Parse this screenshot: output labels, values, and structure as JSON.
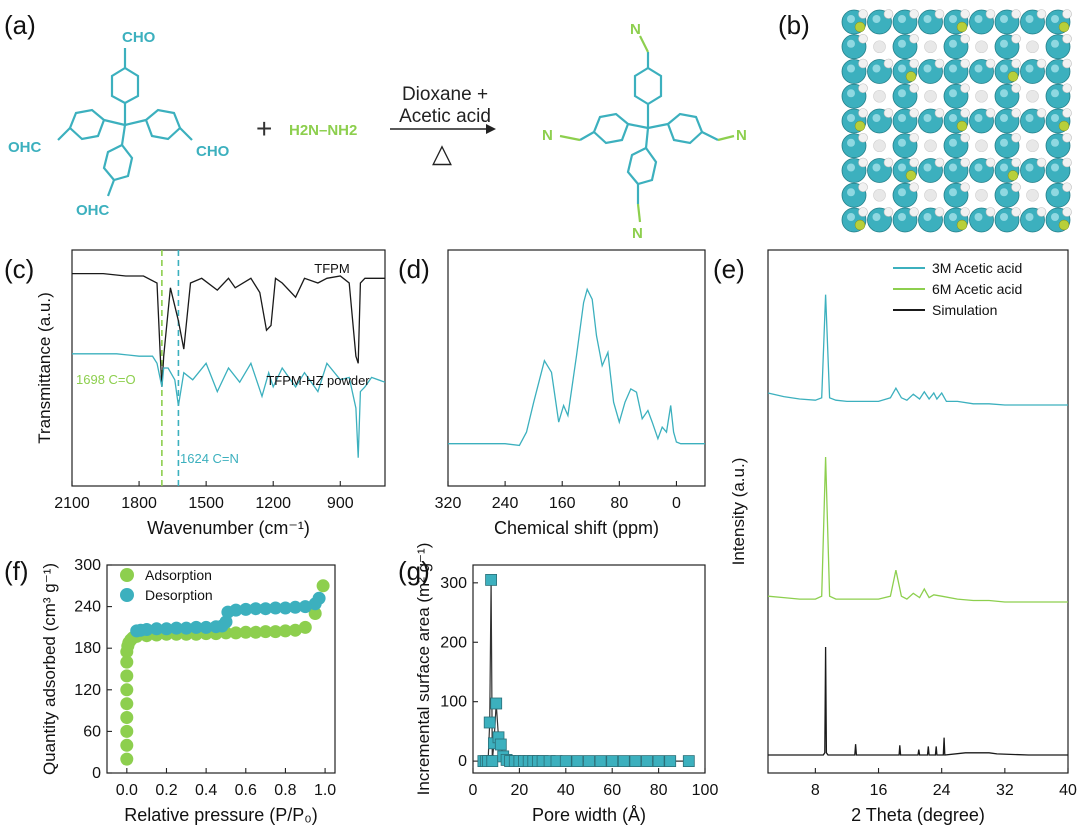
{
  "colors": {
    "teal": "#3cb0be",
    "green": "#8dcf4e",
    "black": "#1a1a1a",
    "axis": "#222222"
  },
  "panel_labels": [
    "(a)",
    "(b)",
    "(c)",
    "(d)",
    "(e)",
    "(f)",
    "(g)"
  ],
  "scheme": {
    "reactant_a_groups": [
      "CHO",
      "OHC",
      "CHO",
      "OHC"
    ],
    "plus": "+",
    "reactant_b": "H2N–NH2",
    "condition_line1": "Dioxane +",
    "condition_line2": "Acetic acid",
    "heat_symbol": "△",
    "product_groups": [
      "N",
      "N",
      "N",
      "N"
    ]
  },
  "chart_data": [
    {
      "panel": "(c)",
      "type": "line",
      "xlabel": "Wavenumber (cm⁻¹)",
      "ylabel": "Transmittance (a.u.)",
      "xlim": [
        2100,
        700
      ],
      "xticks": [
        2100,
        1800,
        1500,
        1200,
        900
      ],
      "series": [
        {
          "name": "TFPM",
          "color": "#1a1a1a",
          "x": [
            2100,
            1960,
            1860,
            1780,
            1720,
            1705,
            1698,
            1690,
            1660,
            1624,
            1600,
            1570,
            1520,
            1450,
            1400,
            1370,
            1300,
            1260,
            1230,
            1210,
            1190,
            1160,
            1100,
            1060,
            1000,
            960,
            900,
            860,
            830,
            820,
            810,
            790,
            760,
            700
          ],
          "y": [
            0.9,
            0.9,
            0.89,
            0.89,
            0.86,
            0.55,
            0.42,
            0.55,
            0.84,
            0.7,
            0.58,
            0.86,
            0.88,
            0.83,
            0.88,
            0.84,
            0.88,
            0.82,
            0.66,
            0.68,
            0.88,
            0.86,
            0.8,
            0.88,
            0.86,
            0.88,
            0.89,
            0.86,
            0.55,
            0.52,
            0.86,
            0.88,
            0.88,
            0.88
          ]
        },
        {
          "name": "TFPM-HZ powder",
          "color": "#3cb0be",
          "x": [
            2100,
            1900,
            1800,
            1740,
            1720,
            1698,
            1690,
            1670,
            1640,
            1624,
            1600,
            1560,
            1500,
            1450,
            1400,
            1350,
            1300,
            1250,
            1220,
            1200,
            1160,
            1100,
            1060,
            1000,
            960,
            900,
            860,
            830,
            820,
            810,
            790,
            760,
            700
          ],
          "y": [
            0.56,
            0.56,
            0.55,
            0.55,
            0.52,
            0.42,
            0.5,
            0.5,
            0.45,
            0.34,
            0.48,
            0.45,
            0.52,
            0.4,
            0.5,
            0.44,
            0.52,
            0.38,
            0.48,
            0.42,
            0.5,
            0.42,
            0.48,
            0.4,
            0.52,
            0.45,
            0.46,
            0.33,
            0.12,
            0.4,
            0.42,
            0.46,
            0.44
          ]
        }
      ],
      "labels": [
        "TFPM",
        "TFPM-HZ powder"
      ],
      "annotations": [
        {
          "text": "1698 C=O",
          "x": 1698,
          "color": "#8dcf4e"
        },
        {
          "text": "1624 C=N",
          "x": 1624,
          "color": "#3cb0be"
        }
      ]
    },
    {
      "panel": "(d)",
      "type": "line",
      "xlabel": "Chemical shift (ppm)",
      "xlim": [
        320,
        -40
      ],
      "xticks": [
        320,
        240,
        160,
        80,
        0
      ],
      "series": [
        {
          "name": "",
          "color": "#3cb0be",
          "x": [
            320,
            280,
            240,
            220,
            210,
            200,
            185,
            175,
            165,
            158,
            152,
            146,
            140,
            130,
            125,
            118,
            112,
            104,
            96,
            88,
            80,
            72,
            64,
            56,
            48,
            40,
            34,
            26,
            20,
            14,
            8,
            4,
            0,
            -6,
            -12,
            -20,
            -30,
            -40
          ],
          "y": [
            0.05,
            0.05,
            0.05,
            0.04,
            0.12,
            0.3,
            0.55,
            0.48,
            0.18,
            0.28,
            0.22,
            0.4,
            0.58,
            0.9,
            0.98,
            0.92,
            0.7,
            0.52,
            0.6,
            0.3,
            0.18,
            0.3,
            0.38,
            0.36,
            0.2,
            0.25,
            0.18,
            0.08,
            0.15,
            0.12,
            0.28,
            0.12,
            0.06,
            0.05,
            0.05,
            0.05,
            0.05,
            0.05
          ]
        }
      ]
    },
    {
      "panel": "(e)",
      "type": "line",
      "xlabel": "2 Theta (degree)",
      "ylabel": "Intensity (a.u.)",
      "xlim": [
        2,
        40
      ],
      "xticks": [
        8,
        16,
        24,
        32,
        40
      ],
      "legend": "top-right",
      "series": [
        {
          "name": "3M Acetic acid",
          "color": "#3cb0be",
          "x": [
            2,
            4,
            6,
            8,
            8.8,
            9.3,
            9.8,
            10.6,
            12,
            14,
            16,
            17.5,
            18.2,
            18.9,
            19.6,
            20.4,
            21.2,
            21.8,
            22.4,
            23,
            23.4,
            24,
            24.6,
            26,
            28,
            30,
            32,
            36,
            40
          ],
          "y": [
            0.1,
            0.07,
            0.05,
            0.04,
            0.06,
            0.92,
            0.06,
            0.04,
            0.03,
            0.03,
            0.03,
            0.06,
            0.14,
            0.06,
            0.04,
            0.09,
            0.05,
            0.11,
            0.05,
            0.1,
            0.05,
            0.1,
            0.03,
            0.03,
            0.01,
            0.01,
            0.0,
            0.0,
            0.0
          ]
        },
        {
          "name": "6M Acetic acid",
          "color": "#8dcf4e",
          "x": [
            2,
            4,
            6,
            8,
            8.8,
            9.3,
            9.8,
            10.6,
            12,
            14,
            16,
            17.5,
            18.2,
            18.9,
            19.6,
            20.4,
            21.2,
            21.8,
            22.4,
            23,
            24,
            26,
            28,
            30,
            32,
            36,
            40
          ],
          "y": [
            0.04,
            0.03,
            0.02,
            0.02,
            0.04,
            1.0,
            0.04,
            0.02,
            0.02,
            0.02,
            0.02,
            0.04,
            0.22,
            0.04,
            0.02,
            0.06,
            0.03,
            0.09,
            0.03,
            0.05,
            0.04,
            0.02,
            0.01,
            0.01,
            0.0,
            0.0,
            0.0
          ]
        },
        {
          "name": "Simulation",
          "color": "#1a1a1a",
          "x": [
            2,
            9,
            9.2,
            9.3,
            9.4,
            9.6,
            13,
            13.1,
            13.2,
            15,
            18.6,
            18.7,
            18.8,
            21,
            21.1,
            21.2,
            22.2,
            22.3,
            22.4,
            23.2,
            23.3,
            23.4,
            24.2,
            24.3,
            24.4,
            27,
            28.5,
            30,
            31,
            35,
            40
          ],
          "y": [
            0,
            0,
            0.02,
            1.0,
            0.02,
            0,
            0,
            0.1,
            0,
            0,
            0,
            0.09,
            0,
            0,
            0.05,
            0,
            0,
            0.08,
            0,
            0,
            0.08,
            0,
            0,
            0.16,
            0,
            0.02,
            0.02,
            0.02,
            0.01,
            0,
            0
          ]
        }
      ]
    },
    {
      "panel": "(f)",
      "type": "scatter",
      "xlabel": "Relative pressure (P/P₀)",
      "ylabel": "Quantity adsorbed (cm³ g⁻¹)",
      "xlim": [
        -0.1,
        1.05
      ],
      "ylim": [
        0,
        300
      ],
      "xticks": [
        0.0,
        0.2,
        0.4,
        0.6,
        0.8,
        1.0
      ],
      "yticks": [
        0,
        60,
        120,
        180,
        240,
        300
      ],
      "legend": "top-left",
      "series": [
        {
          "name": "Adsorption",
          "color": "#8dcf4e",
          "x": [
            0.0,
            0.0,
            0.0,
            0.0,
            0.0,
            0.0,
            0.0,
            0.0,
            0.0,
            0.005,
            0.01,
            0.02,
            0.03,
            0.05,
            0.1,
            0.15,
            0.2,
            0.25,
            0.3,
            0.35,
            0.4,
            0.45,
            0.5,
            0.55,
            0.6,
            0.65,
            0.7,
            0.75,
            0.8,
            0.85,
            0.9,
            0.95,
            0.99
          ],
          "y": [
            20,
            40,
            60,
            80,
            100,
            120,
            140,
            160,
            175,
            183,
            188,
            192,
            195,
            197,
            198,
            199,
            200,
            200,
            200,
            200,
            201,
            201,
            202,
            202,
            203,
            203,
            204,
            204,
            205,
            206,
            210,
            230,
            270
          ]
        },
        {
          "name": "Desorption",
          "color": "#3cb0be",
          "x": [
            0.97,
            0.95,
            0.9,
            0.85,
            0.8,
            0.75,
            0.7,
            0.65,
            0.6,
            0.55,
            0.51,
            0.5,
            0.48,
            0.45,
            0.4,
            0.35,
            0.3,
            0.25,
            0.2,
            0.15,
            0.1,
            0.07,
            0.05
          ],
          "y": [
            252,
            244,
            240,
            239,
            238,
            238,
            237,
            237,
            236,
            235,
            232,
            218,
            212,
            211,
            210,
            210,
            209,
            209,
            208,
            208,
            207,
            206,
            205
          ]
        }
      ]
    },
    {
      "panel": "(g)",
      "type": "scatter",
      "xlabel": "Pore width (Å)",
      "ylabel": "Incremental surface area (m² g⁻¹)",
      "xlim": [
        0,
        100
      ],
      "ylim": [
        -20,
        330
      ],
      "xticks": [
        0,
        20,
        40,
        60,
        80,
        100
      ],
      "yticks": [
        0,
        100,
        200,
        300
      ],
      "series": [
        {
          "name": "",
          "color": "#3cb0be",
          "x": [
            4.5,
            5.5,
            6.5,
            7.2,
            7.8,
            8.3,
            9.0,
            10.0,
            11.0,
            12.0,
            13.0,
            14.5,
            16,
            18,
            20,
            22,
            24,
            26,
            28,
            30,
            33,
            36,
            40,
            45,
            50,
            55,
            60,
            65,
            70,
            75,
            80,
            85,
            93
          ],
          "y": [
            0,
            0,
            0,
            65,
            305,
            0,
            30,
            97,
            40,
            28,
            8,
            2,
            0,
            0,
            0,
            0,
            0,
            0,
            0,
            0,
            0,
            0,
            0,
            0,
            0,
            0,
            0,
            0,
            0,
            0,
            0,
            0,
            0
          ]
        }
      ]
    }
  ]
}
